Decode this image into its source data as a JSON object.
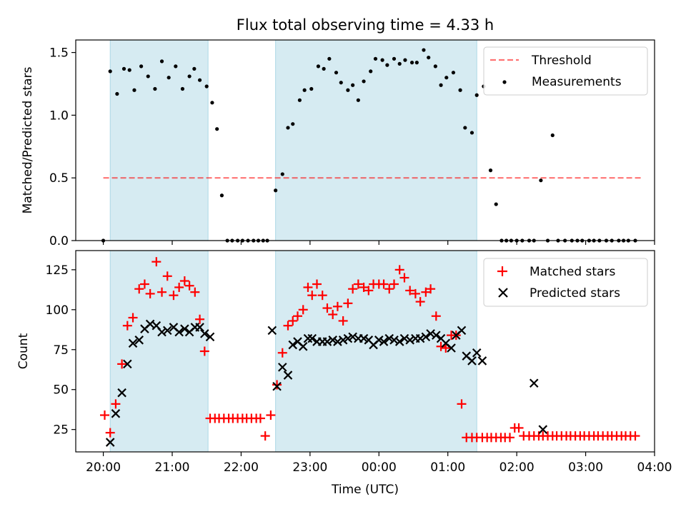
{
  "title": "Flux total observing time = 4.33 h",
  "xlabel": "Time (UTC)",
  "x_tick_labels": [
    "20:00",
    "21:00",
    "22:00",
    "23:00",
    "00:00",
    "01:00",
    "02:00",
    "03:00",
    "04:00"
  ],
  "colors": {
    "shade": "#add8e6",
    "threshold": "#ff0000",
    "measurement": "#000000",
    "matched": "#ff0000",
    "predicted": "#000000"
  },
  "chart_data": [
    {
      "type": "scatter",
      "title": "Flux total observing time = 4.33 h",
      "xlabel": "",
      "ylabel": "Matched/Predicted stars",
      "x_unit": "hours since 20:00 UTC",
      "xlim": [
        -0.4,
        8.0
      ],
      "ylim": [
        0,
        1.6
      ],
      "yticks": [
        0.0,
        0.5,
        1.0,
        1.5
      ],
      "y_tick_labels": [
        "0.0",
        "0.5",
        "1.0",
        "1.5"
      ],
      "shaded_intervals": [
        [
          0.1,
          1.52
        ],
        [
          2.5,
          5.42
        ]
      ],
      "threshold": {
        "name": "Threshold",
        "y": 0.5,
        "x_range": [
          0.0,
          7.8
        ]
      },
      "legend_placement": "top-right",
      "series": [
        {
          "name": "Measurements",
          "x": [
            0.0,
            0.1,
            0.2,
            0.3,
            0.38,
            0.45,
            0.55,
            0.65,
            0.75,
            0.85,
            0.95,
            1.05,
            1.15,
            1.25,
            1.32,
            1.4,
            1.5,
            1.58,
            1.65,
            1.72,
            1.8,
            1.87,
            1.95,
            2.02,
            2.1,
            2.18,
            2.25,
            2.32,
            2.38,
            2.5,
            2.6,
            2.68,
            2.75,
            2.85,
            2.92,
            3.02,
            3.12,
            3.2,
            3.28,
            3.38,
            3.45,
            3.55,
            3.62,
            3.7,
            3.78,
            3.88,
            3.95,
            4.05,
            4.12,
            4.22,
            4.3,
            4.38,
            4.48,
            4.55,
            4.65,
            4.72,
            4.82,
            4.9,
            4.98,
            5.08,
            5.18,
            5.25,
            5.35,
            5.42,
            5.52,
            5.62,
            5.7,
            5.78,
            5.85,
            5.92,
            6.0,
            6.08,
            6.18,
            6.25,
            6.35,
            6.45,
            6.52,
            6.6,
            6.7,
            6.8,
            6.88,
            6.95,
            7.05,
            7.12,
            7.2,
            7.3,
            7.38,
            7.48,
            7.55,
            7.62,
            7.72
          ],
          "y": [
            0.0,
            1.35,
            1.17,
            1.37,
            1.36,
            1.2,
            1.39,
            1.31,
            1.21,
            1.43,
            1.3,
            1.39,
            1.21,
            1.31,
            1.37,
            1.28,
            1.23,
            1.1,
            0.89,
            0.36,
            0.0,
            0.0,
            0.0,
            0.0,
            0.0,
            0.0,
            0.0,
            0.0,
            0.0,
            0.4,
            0.53,
            0.9,
            0.93,
            1.12,
            1.2,
            1.21,
            1.39,
            1.37,
            1.45,
            1.34,
            1.26,
            1.2,
            1.24,
            1.12,
            1.27,
            1.35,
            1.45,
            1.44,
            1.4,
            1.45,
            1.41,
            1.44,
            1.42,
            1.42,
            1.52,
            1.46,
            1.39,
            1.24,
            1.3,
            1.34,
            1.2,
            0.9,
            0.86,
            1.16,
            1.23,
            0.56,
            0.29,
            0.0,
            0.0,
            0.0,
            0.0,
            0.0,
            0.0,
            0.0,
            0.48,
            0.0,
            0.84,
            0.0,
            0.0,
            0.0,
            0.0,
            0.0,
            0.0,
            0.0,
            0.0,
            0.0,
            0.0,
            0.0,
            0.0,
            0.0,
            0.0
          ]
        }
      ]
    },
    {
      "type": "scatter",
      "title": "",
      "xlabel": "Time (UTC)",
      "ylabel": "Count",
      "x_unit": "hours since 20:00 UTC",
      "xlim": [
        -0.4,
        8.0
      ],
      "ylim": [
        11,
        137
      ],
      "yticks": [
        25,
        50,
        75,
        100,
        125
      ],
      "y_tick_labels": [
        "25",
        "50",
        "75",
        "100",
        "125"
      ],
      "shaded_intervals": [
        [
          0.1,
          1.52
        ],
        [
          2.5,
          5.42
        ]
      ],
      "legend_placement": "top-right",
      "series": [
        {
          "name": "Matched stars",
          "marker": "plus",
          "x": [
            0.02,
            0.1,
            0.18,
            0.27,
            0.35,
            0.43,
            0.52,
            0.6,
            0.68,
            0.77,
            0.85,
            0.93,
            1.02,
            1.1,
            1.18,
            1.25,
            1.33,
            1.4,
            1.47,
            1.55,
            1.62,
            1.68,
            1.75,
            1.82,
            1.88,
            1.95,
            2.02,
            2.08,
            2.15,
            2.22,
            2.28,
            2.35,
            2.43,
            2.52,
            2.6,
            2.68,
            2.75,
            2.82,
            2.9,
            2.97,
            3.03,
            3.1,
            3.18,
            3.25,
            3.33,
            3.4,
            3.48,
            3.55,
            3.62,
            3.7,
            3.78,
            3.85,
            3.92,
            4.0,
            4.07,
            4.15,
            4.22,
            4.3,
            4.37,
            4.45,
            4.53,
            4.6,
            4.68,
            4.75,
            4.83,
            4.9,
            4.97,
            5.05,
            5.12,
            5.2,
            5.27,
            5.35,
            5.42,
            5.5,
            5.57,
            5.63,
            5.7,
            5.77,
            5.83,
            5.9,
            5.97,
            6.03,
            6.1,
            6.18,
            6.25,
            6.32,
            6.38,
            6.45,
            6.52,
            6.58,
            6.65,
            6.72,
            6.78,
            6.85,
            6.92,
            6.98,
            7.05,
            7.12,
            7.18,
            7.25,
            7.32,
            7.38,
            7.45,
            7.52,
            7.58,
            7.65,
            7.72
          ],
          "y": [
            34,
            23,
            41,
            66,
            90,
            95,
            113,
            116,
            110,
            130,
            111,
            121,
            109,
            114,
            118,
            115,
            111,
            94,
            74,
            32,
            32,
            32,
            32,
            32,
            32,
            32,
            32,
            32,
            32,
            32,
            32,
            21,
            34,
            53,
            73,
            90,
            93,
            96,
            100,
            114,
            109,
            116,
            109,
            101,
            97,
            102,
            93,
            104,
            113,
            116,
            114,
            112,
            116,
            116,
            116,
            113,
            116,
            125,
            120,
            112,
            110,
            105,
            111,
            113,
            96,
            77,
            76,
            84,
            84,
            41,
            20,
            20,
            20,
            20,
            20,
            20,
            20,
            20,
            20,
            20,
            26,
            26,
            21,
            21,
            21,
            21,
            21,
            21,
            21,
            21,
            21,
            21,
            21,
            21,
            21,
            21,
            21,
            21,
            21,
            21,
            21,
            21,
            21,
            21,
            21,
            21,
            21
          ]
        },
        {
          "name": "Predicted stars",
          "marker": "x",
          "x": [
            0.1,
            0.18,
            0.27,
            0.35,
            0.43,
            0.52,
            0.6,
            0.68,
            0.77,
            0.85,
            0.93,
            1.02,
            1.1,
            1.18,
            1.25,
            1.33,
            1.4,
            1.47,
            1.55,
            2.45,
            2.52,
            2.6,
            2.68,
            2.75,
            2.82,
            2.9,
            2.97,
            3.03,
            3.1,
            3.18,
            3.25,
            3.33,
            3.4,
            3.48,
            3.55,
            3.62,
            3.7,
            3.78,
            3.85,
            3.92,
            4.0,
            4.07,
            4.15,
            4.22,
            4.3,
            4.37,
            4.45,
            4.53,
            4.6,
            4.68,
            4.75,
            4.83,
            4.9,
            4.97,
            5.05,
            5.12,
            5.2,
            5.27,
            5.35,
            5.42,
            5.5,
            6.25,
            6.38
          ],
          "y": [
            17,
            35,
            48,
            66,
            79,
            81,
            88,
            91,
            90,
            86,
            87,
            89,
            86,
            88,
            86,
            89,
            89,
            85,
            83,
            87,
            52,
            64,
            59,
            78,
            80,
            77,
            82,
            82,
            80,
            80,
            80,
            81,
            80,
            81,
            82,
            83,
            82,
            82,
            81,
            78,
            81,
            80,
            82,
            81,
            80,
            82,
            81,
            82,
            82,
            83,
            85,
            84,
            82,
            79,
            76,
            84,
            87,
            71,
            68,
            73,
            68,
            54,
            25
          ]
        }
      ]
    }
  ]
}
